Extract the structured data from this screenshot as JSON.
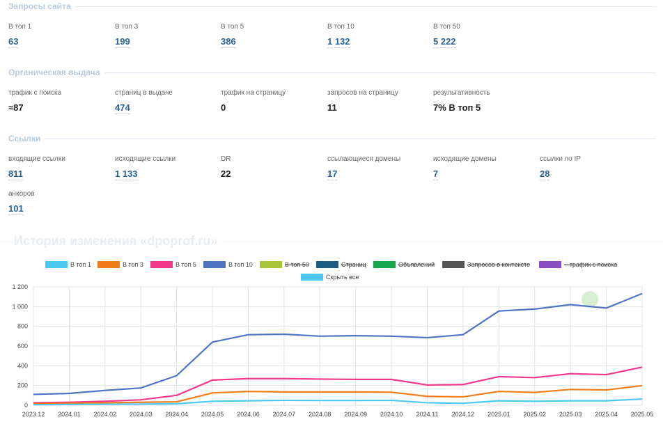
{
  "sections": {
    "queries": {
      "title": "Запросы сайта",
      "metrics": [
        {
          "label": "В топ 1",
          "value": "63"
        },
        {
          "label": "В топ 3",
          "value": "199"
        },
        {
          "label": "В топ 5",
          "value": "386"
        },
        {
          "label": "В топ 10",
          "value": "1 132"
        },
        {
          "label": "В топ 50",
          "value": "5 222"
        }
      ]
    },
    "organic": {
      "title": "Органическая выдача",
      "metrics": [
        {
          "label": "трафик с поиска",
          "value": "≈87"
        },
        {
          "label": "страниц в выдаче",
          "value": "474"
        },
        {
          "label": "трафик на страницу",
          "value": "0"
        },
        {
          "label": "запросов на страницу",
          "value": "11"
        },
        {
          "label": "результативность",
          "value": "7% В топ 5"
        }
      ]
    },
    "links": {
      "title": "Ссылки",
      "metrics": [
        {
          "label": "входящие ссылки",
          "value": "811"
        },
        {
          "label": "исходящие ссылки",
          "value": "1 133"
        },
        {
          "label": "DR",
          "value": "22"
        },
        {
          "label": "ссылающиеся домены",
          "value": "17"
        },
        {
          "label": "исходящие домены",
          "value": "7"
        },
        {
          "label": "ссылки по IP",
          "value": "28"
        },
        {
          "label": "анкоров",
          "value": "101"
        }
      ]
    }
  },
  "history": {
    "title": "История изменения «dpoprof.ru»",
    "legend": [
      {
        "label": "В топ 1",
        "color": "#4cc9f0",
        "active": true
      },
      {
        "label": "В топ 3",
        "color": "#f07d1a",
        "active": true
      },
      {
        "label": "В топ 5",
        "color": "#f0388c",
        "active": true
      },
      {
        "label": "В топ 10",
        "color": "#4f74c4",
        "active": true
      },
      {
        "label": "В топ 50",
        "color": "#a8c43a",
        "active": false
      },
      {
        "label": "Страниц",
        "color": "#1f5f86",
        "active": false
      },
      {
        "label": "Объявлений",
        "color": "#13a84d",
        "active": false
      },
      {
        "label": "Запросов в контексте",
        "color": "#555555",
        "active": false
      },
      {
        "label": "~ трафик с поиска",
        "color": "#8a4fc0",
        "active": false
      },
      {
        "label": "Скрыть все",
        "color": "#4cc9f0",
        "active": true
      }
    ]
  },
  "chart_data": {
    "type": "line",
    "x": [
      "2023.12",
      "2024.01",
      "2024.02",
      "2024.03",
      "2024.04",
      "2024.05",
      "2024.06",
      "2024.07",
      "2024.08",
      "2024.09",
      "2024.10",
      "2024.11",
      "2024.12",
      "2025.01",
      "2025.02",
      "2025.03",
      "2025.04",
      "2025.05"
    ],
    "y_ticks": [
      "0",
      "200",
      "400",
      "600",
      "800",
      "1 000",
      "1 200"
    ],
    "ylim": [
      0,
      1200
    ],
    "grid": true,
    "series": [
      {
        "name": "В топ 10",
        "color": "#4f74c4",
        "values": [
          110,
          120,
          150,
          175,
          300,
          640,
          715,
          720,
          700,
          705,
          700,
          685,
          715,
          955,
          975,
          1020,
          985,
          1132
        ]
      },
      {
        "name": "В топ 5",
        "color": "#f0388c",
        "values": [
          25,
          30,
          40,
          55,
          100,
          255,
          270,
          270,
          265,
          262,
          262,
          205,
          210,
          290,
          280,
          320,
          310,
          386
        ]
      },
      {
        "name": "В топ 3",
        "color": "#f07d1a",
        "values": [
          15,
          20,
          25,
          30,
          35,
          125,
          140,
          135,
          135,
          135,
          132,
          90,
          85,
          140,
          130,
          160,
          155,
          199
        ]
      },
      {
        "name": "В топ 1",
        "color": "#4cc9f0",
        "values": [
          5,
          8,
          10,
          12,
          15,
          40,
          45,
          50,
          48,
          48,
          50,
          25,
          20,
          45,
          40,
          45,
          45,
          63
        ]
      }
    ]
  }
}
